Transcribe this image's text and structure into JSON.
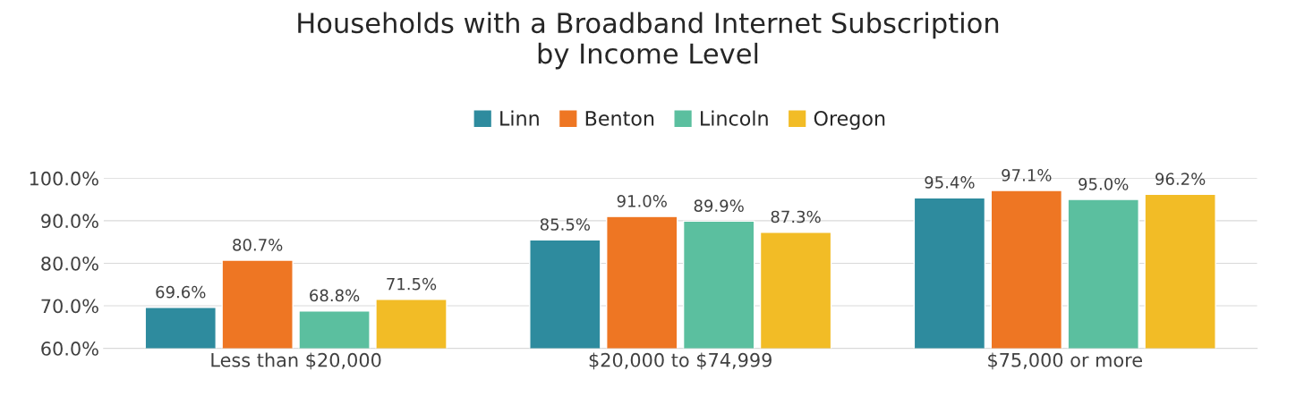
{
  "chart_data": {
    "type": "bar",
    "title": "Households with a Broadband Internet Subscription\nby Income Level",
    "categories": [
      "Less than $20,000",
      "$20,000 to $74,999",
      "$75,000 or more"
    ],
    "series": [
      {
        "name": "Linn",
        "color": "#2e8b9e",
        "values": [
          69.6,
          85.5,
          95.4
        ],
        "value_labels": [
          "69.6%",
          "85.5%",
          "95.4%"
        ]
      },
      {
        "name": "Benton",
        "color": "#ee7623",
        "values": [
          80.7,
          91.0,
          97.1
        ],
        "value_labels": [
          "80.7%",
          "91.0%",
          "97.1%"
        ]
      },
      {
        "name": "Lincoln",
        "color": "#5bbf9f",
        "values": [
          68.8,
          89.9,
          95.0
        ],
        "value_labels": [
          "68.8%",
          "89.9%",
          "95.0%"
        ]
      },
      {
        "name": "Oregon",
        "color": "#f2bc26",
        "values": [
          71.5,
          87.3,
          96.2
        ],
        "value_labels": [
          "71.5%",
          "87.3%",
          "96.2%"
        ]
      }
    ],
    "ylim": [
      60,
      100
    ],
    "yticks": [
      {
        "value": 60,
        "label": "60.0%"
      },
      {
        "value": 70,
        "label": "70.0%"
      },
      {
        "value": 80,
        "label": "80.0%"
      },
      {
        "value": 90,
        "label": "90.0%"
      },
      {
        "value": 100,
        "label": "100.0%"
      }
    ],
    "grid": "y",
    "legend": "top"
  }
}
